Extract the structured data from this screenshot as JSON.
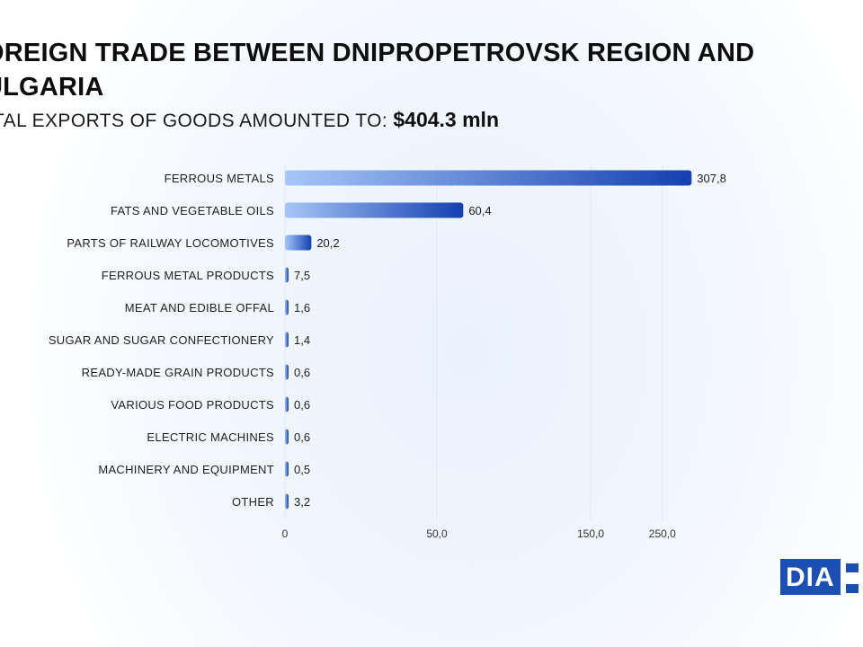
{
  "title": "OREIGN TRADE BETWEEN DNIPROPETROVSK REGION AND ULGARIA",
  "subtitle": {
    "text": "TAL EXPORTS OF GOODS AMOUNTED TO:",
    "amount": "$404.3 mln"
  },
  "colors": {
    "bar_start": "#a7c6f7",
    "bar_end": "#1440b0",
    "grid": "#e2e6ee",
    "logo": "#1c4fb3"
  },
  "logo_text": "DIA",
  "chart_data": {
    "type": "bar",
    "orientation": "horizontal",
    "categories": [
      "FERROUS METALS",
      "FATS AND VEGETABLE OILS",
      "PARTS OF RAILWAY LOCOMOTIVES",
      "FERROUS METAL PRODUCTS",
      "MEAT AND EDIBLE OFFAL",
      "SUGAR AND SUGAR CONFECTIONERY",
      "READY-MADE GRAIN PRODUCTS",
      "VARIOUS FOOD PRODUCTS",
      "ELECTRIC MACHINES",
      "MACHINERY AND EQUIPMENT",
      "OTHER"
    ],
    "values": [
      307.8,
      60.4,
      20.2,
      7.5,
      1.6,
      1.4,
      0.6,
      0.6,
      0.6,
      0.5,
      3.2
    ],
    "value_labels": [
      "307,8",
      "60,4",
      "20,2",
      "7,5",
      "1,6",
      "1,4",
      "0,6",
      "0,6",
      "0,6",
      "0,5",
      "3,2"
    ],
    "x_ticks": [
      {
        "value": 0,
        "label": "0"
      },
      {
        "value": 50,
        "label": "50,0"
      },
      {
        "value": 150,
        "label": "150,0"
      },
      {
        "value": 250,
        "label": "250,0"
      }
    ],
    "x_scale": "symlog",
    "grid": true,
    "xlabel": "",
    "ylabel": ""
  }
}
